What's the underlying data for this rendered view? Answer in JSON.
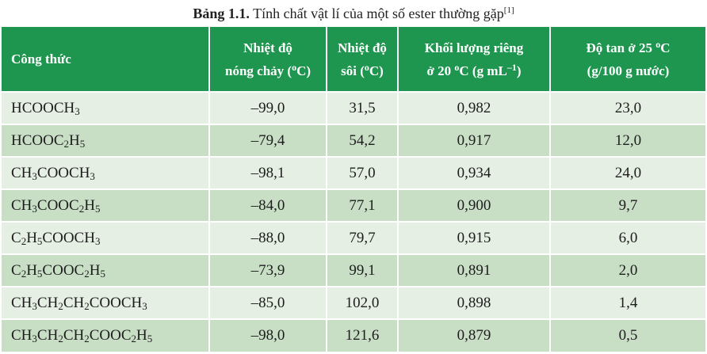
{
  "caption": {
    "label": "Bảng 1.1.",
    "text": "Tính chất vật lí của một số ester thường gặp",
    "ref": "[1]"
  },
  "header": {
    "formula": "Công thức",
    "melting": [
      "Nhiệt độ",
      "nóng chảy (",
      "o",
      "C)"
    ],
    "boiling": [
      "Nhiệt độ",
      "sôi (",
      "o",
      "C)"
    ],
    "density": [
      "Khối lượng riêng",
      "ở 20 ",
      "o",
      "C (g mL",
      "–1",
      ")"
    ],
    "solubility": [
      "Độ tan ở 25 ",
      "o",
      "C",
      "(g/100 g nước)"
    ]
  },
  "rows": [
    {
      "formula": [
        [
          "HCOOCH",
          ""
        ],
        [
          "",
          "3"
        ]
      ],
      "melting": "–99,0",
      "boiling": "31,5",
      "density": "0,982",
      "solubility": "23,0"
    },
    {
      "formula": [
        [
          "HCOOC",
          ""
        ],
        [
          "",
          "2"
        ],
        [
          "H",
          ""
        ],
        [
          "",
          "5"
        ]
      ],
      "melting": "–79,4",
      "boiling": "54,2",
      "density": "0,917",
      "solubility": "12,0"
    },
    {
      "formula": [
        [
          "CH",
          ""
        ],
        [
          "",
          "3"
        ],
        [
          "COOCH",
          ""
        ],
        [
          "",
          "3"
        ]
      ],
      "melting": "–98,1",
      "boiling": "57,0",
      "density": "0,934",
      "solubility": "24,0"
    },
    {
      "formula": [
        [
          "CH",
          ""
        ],
        [
          "",
          "3"
        ],
        [
          "COOC",
          ""
        ],
        [
          "",
          "2"
        ],
        [
          "H",
          ""
        ],
        [
          "",
          "5"
        ]
      ],
      "melting": "–84,0",
      "boiling": "77,1",
      "density": "0,900",
      "solubility": "9,7"
    },
    {
      "formula": [
        [
          "C",
          ""
        ],
        [
          "",
          "2"
        ],
        [
          "H",
          ""
        ],
        [
          "",
          "5"
        ],
        [
          "COOCH",
          ""
        ],
        [
          "",
          "3"
        ]
      ],
      "melting": "–88,0",
      "boiling": "79,7",
      "density": "0,915",
      "solubility": "6,0"
    },
    {
      "formula": [
        [
          "C",
          ""
        ],
        [
          "",
          "2"
        ],
        [
          "H",
          ""
        ],
        [
          "",
          "5"
        ],
        [
          "COOC",
          ""
        ],
        [
          "",
          "2"
        ],
        [
          "H",
          ""
        ],
        [
          "",
          "5"
        ]
      ],
      "melting": "–73,9",
      "boiling": "99,1",
      "density": "0,891",
      "solubility": "2,0"
    },
    {
      "formula": [
        [
          "CH",
          ""
        ],
        [
          "",
          "3"
        ],
        [
          "CH",
          ""
        ],
        [
          "",
          "2"
        ],
        [
          "CH",
          ""
        ],
        [
          "",
          "2"
        ],
        [
          "COOCH",
          ""
        ],
        [
          "",
          "3"
        ]
      ],
      "melting": "–85,0",
      "boiling": "102,0",
      "density": "0,898",
      "solubility": "1,4"
    },
    {
      "formula": [
        [
          "CH",
          ""
        ],
        [
          "",
          "3"
        ],
        [
          "CH",
          ""
        ],
        [
          "",
          "2"
        ],
        [
          "CH",
          ""
        ],
        [
          "",
          "2"
        ],
        [
          "COOC",
          ""
        ],
        [
          "",
          "2"
        ],
        [
          "H",
          ""
        ],
        [
          "",
          "5"
        ]
      ],
      "melting": "–98,0",
      "boiling": "121,6",
      "density": "0,879",
      "solubility": "0,5"
    }
  ]
}
